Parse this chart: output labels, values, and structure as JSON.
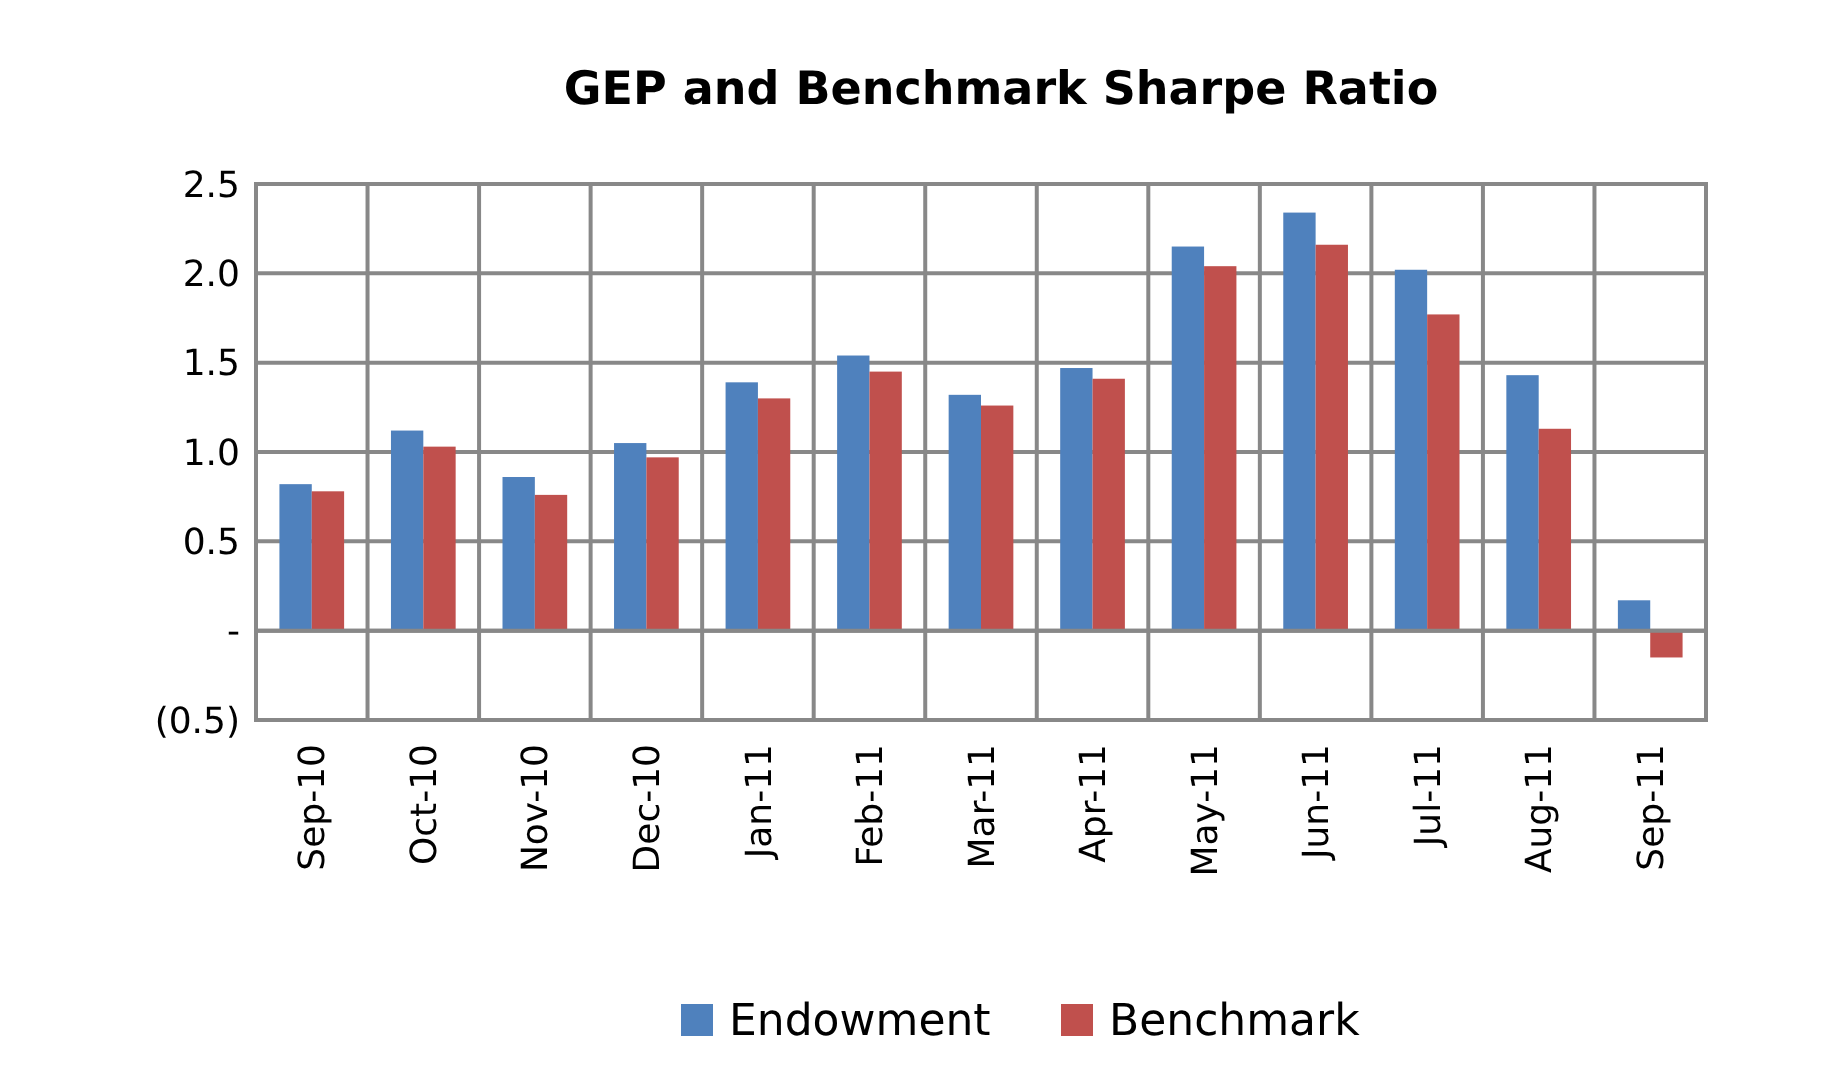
{
  "chart_data": {
    "type": "bar",
    "title": "GEP and Benchmark Sharpe Ratio",
    "categories": [
      "Sep-10",
      "Oct-10",
      "Nov-10",
      "Dec-10",
      "Jan-11",
      "Feb-11",
      "Mar-11",
      "Apr-11",
      "May-11",
      "Jun-11",
      "Jul-11",
      "Aug-11",
      "Sep-11"
    ],
    "series": [
      {
        "name": "Endowment",
        "color": "#4f81bd",
        "values": [
          0.82,
          1.12,
          0.86,
          1.05,
          1.39,
          1.54,
          1.32,
          1.47,
          2.15,
          2.34,
          2.02,
          1.43,
          0.17
        ]
      },
      {
        "name": "Benchmark",
        "color": "#c0504d",
        "values": [
          0.78,
          1.03,
          0.76,
          0.97,
          1.3,
          1.45,
          1.26,
          1.41,
          2.04,
          2.16,
          1.77,
          1.13,
          -0.15
        ]
      }
    ],
    "ylim": [
      -0.5,
      2.5
    ],
    "yticks": [
      {
        "value": -0.5,
        "label": "(0.5)"
      },
      {
        "value": 0,
        "label": "-"
      },
      {
        "value": 0.5,
        "label": "0.5"
      },
      {
        "value": 1,
        "label": "1.0"
      },
      {
        "value": 1.5,
        "label": "1.5"
      },
      {
        "value": 2,
        "label": "2.0"
      },
      {
        "value": 2.5,
        "label": "2.5"
      }
    ],
    "grid": true,
    "legend": "bottom"
  }
}
